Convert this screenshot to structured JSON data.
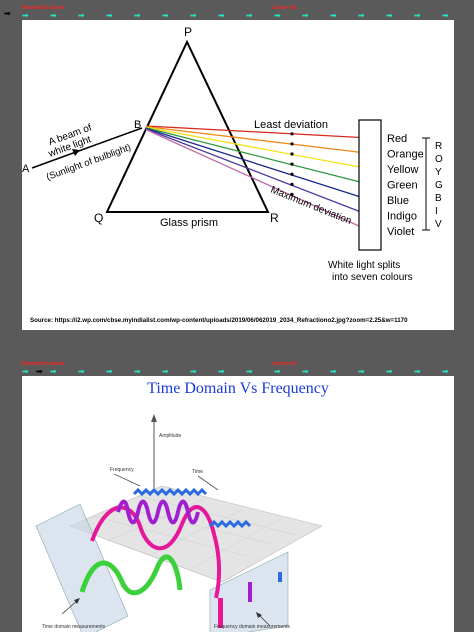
{
  "slide1": {
    "header_left": "Recorded Lecture",
    "header_right": "Lecture 61",
    "figure": {
      "vertex_p": "P",
      "vertex_q": "Q",
      "vertex_r": "R",
      "point_a": "A",
      "point_b": "B",
      "beam_label_line1": "A beam of",
      "beam_label_line2": "white light",
      "beam_label_line3": "(Sunlight of bulblight)",
      "prism_label": "Glass prism",
      "least_deviation": "Least deviation",
      "maximum_deviation": "Maximum deviation",
      "colours": [
        {
          "name": "Red",
          "color": "#d62a1e"
        },
        {
          "name": "Orange",
          "color": "#f08a1c"
        },
        {
          "name": "Yellow",
          "color": "#f2e21a"
        },
        {
          "name": "Green",
          "color": "#2a9a3a"
        },
        {
          "name": "Blue",
          "color": "#1a2a8a"
        },
        {
          "name": "Indigo",
          "color": "#4a3aa0"
        },
        {
          "name": "Violet",
          "color": "#c06aa8"
        }
      ],
      "vibgyor_letters": [
        "R",
        "O",
        "Y",
        "G",
        "B",
        "I",
        "V"
      ],
      "caption_line1": "White light splits",
      "caption_line2": "into seven colours"
    },
    "source": "Source: https://i2.wp.com/cbse.myindialist.com/wp-content/uploads/2019/06/062019_2034_Refractiono2.jpg?zoom=2.25&w=1170"
  },
  "slide2": {
    "header_left": "Recorded Lecture",
    "header_right": "Lecture 61",
    "title": "Time Domain Vs Frequency",
    "axis_amplitude": "Amplitude",
    "axis_frequency": "Frequency",
    "axis_time": "Time",
    "time_domain_label": "Time domain measurements",
    "frequency_domain_label": "Frequency domain measurements"
  }
}
